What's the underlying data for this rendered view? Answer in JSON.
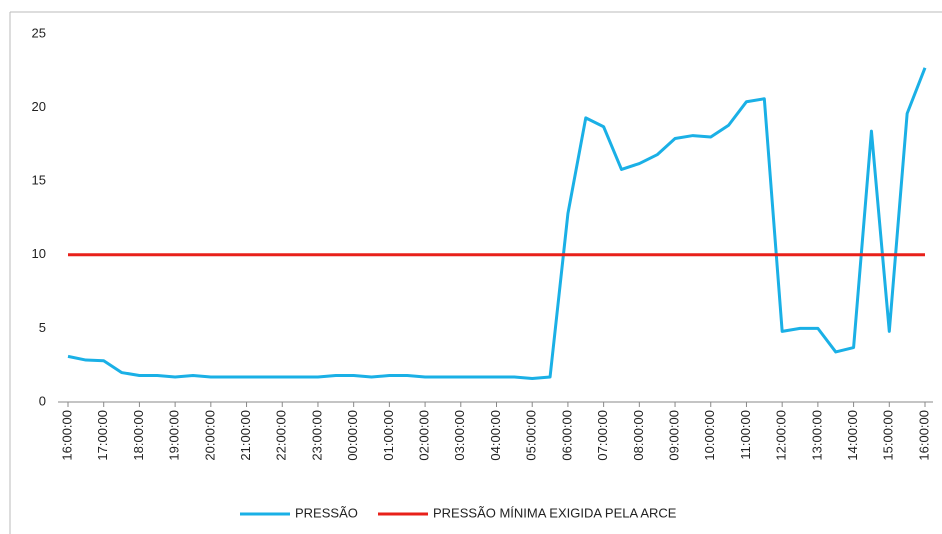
{
  "chart_data": {
    "type": "line",
    "categories": [
      "16:00:00",
      null,
      "17:00:00",
      null,
      "18:00:00",
      null,
      "19:00:00",
      null,
      "20:00:00",
      null,
      "21:00:00",
      null,
      "22:00:00",
      null,
      "23:00:00",
      null,
      "00:00:00",
      null,
      "01:00:00",
      null,
      "02:00:00",
      null,
      "03:00:00",
      null,
      "04:00:00",
      null,
      "05:00:00",
      null,
      "06:00:00",
      null,
      "07:00:00",
      null,
      "08:00:00",
      null,
      "09:00:00",
      null,
      "10:00:00",
      null,
      "11:00:00",
      null,
      "12:00:00",
      null,
      "13:00:00",
      null,
      "14:00:00",
      null,
      "15:00:00",
      null,
      "16:00:00"
    ],
    "series": [
      {
        "name": "PRESSÃO",
        "color": "#1ab0e6",
        "values": [
          3.1,
          2.85,
          2.8,
          2.0,
          1.8,
          1.8,
          1.7,
          1.8,
          1.7,
          1.7,
          1.7,
          1.7,
          1.7,
          1.7,
          1.7,
          1.8,
          1.8,
          1.7,
          1.8,
          1.8,
          1.7,
          1.7,
          1.7,
          1.7,
          1.7,
          1.7,
          1.6,
          1.7,
          12.8,
          19.3,
          18.7,
          15.8,
          16.2,
          16.8,
          17.9,
          18.1,
          18.0,
          18.8,
          20.4,
          20.6,
          4.8,
          5.0,
          5.0,
          3.4,
          3.7,
          18.4,
          4.8,
          19.6,
          22.7
        ]
      },
      {
        "name": "PRESSÃO MÍNIMA EXIGIDA PELA ARCE",
        "color": "#e8201a",
        "values": [
          10,
          10,
          10,
          10,
          10,
          10,
          10,
          10,
          10,
          10,
          10,
          10,
          10,
          10,
          10,
          10,
          10,
          10,
          10,
          10,
          10,
          10,
          10,
          10,
          10,
          10,
          10,
          10,
          10,
          10,
          10,
          10,
          10,
          10,
          10,
          10,
          10,
          10,
          10,
          10,
          10,
          10,
          10,
          10,
          10,
          10,
          10,
          10,
          10
        ]
      }
    ],
    "ylim": [
      0,
      25
    ],
    "yticks": [
      0,
      5,
      10,
      15,
      20,
      25
    ],
    "legend": "bottom"
  }
}
